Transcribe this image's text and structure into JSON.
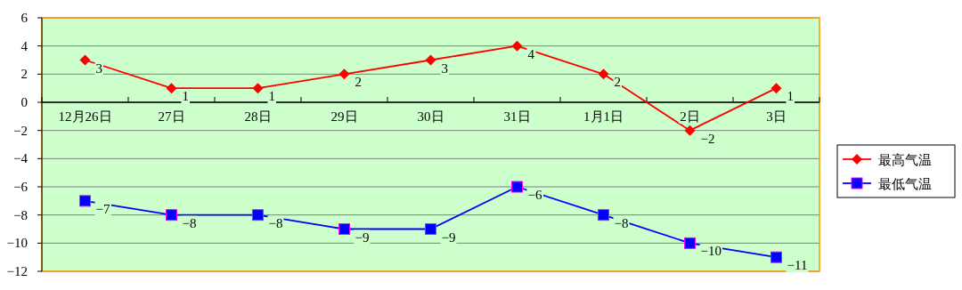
{
  "chart_data": {
    "type": "line",
    "categories": [
      "12月26日",
      "27日",
      "28日",
      "29日",
      "30日",
      "31日",
      "1月1日",
      "2日",
      "3日"
    ],
    "series": [
      {
        "name": "最高气温",
        "color": "#ff0000",
        "marker": "diamond",
        "values": [
          3,
          1,
          1,
          2,
          3,
          4,
          2,
          -2,
          1
        ]
      },
      {
        "name": "最低气温",
        "color": "#0000ff",
        "marker": "square",
        "values": [
          -7,
          -8,
          -8,
          -9,
          -9,
          -6,
          -8,
          -10,
          -11
        ]
      }
    ],
    "ylim": [
      -12,
      6
    ],
    "yticks": [
      -12,
      -10,
      -8,
      -6,
      -4,
      -2,
      0,
      2,
      4,
      6
    ],
    "grid": "y",
    "legend": "right",
    "data_labels": true
  }
}
